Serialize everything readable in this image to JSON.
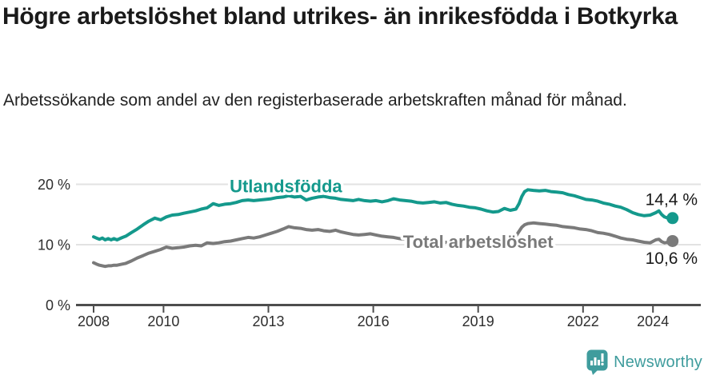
{
  "header": {
    "title": "Högre arbetslöshet bland utrikes- än inrikesfödda i Botkyrka",
    "subtitle": "Arbetssökande som andel av den registerbaserade arbetskraften månad för månad."
  },
  "footer": {
    "brand": "Newsworthy"
  },
  "colors": {
    "foreign_series": "#14998c",
    "total_series": "#7a7a7a",
    "axis": "#4d4d4d",
    "grid": "#e2e2e2",
    "text": "#1a1a1a",
    "logo_teal": "#3f9c9d",
    "background": "#ffffff"
  },
  "chart_data": {
    "type": "line",
    "title": "Högre arbetslöshet bland utrikes- än inrikesfödda i Botkyrka",
    "subtitle": "Arbetssökande som andel av den registerbaserade arbetskraften månad för månad.",
    "x_unit": "year (decimal; monthly observations 2008 – mid 2024)",
    "y_unit": "percent of register-based labour force",
    "ylim": [
      0,
      21
    ],
    "xlim": [
      2007.5,
      2025.4
    ],
    "grid": "horizontal-only",
    "legend_position": "inline-direct-labels",
    "yticks": [
      {
        "value": 0,
        "label": "0 %"
      },
      {
        "value": 10,
        "label": "10 %"
      },
      {
        "value": 20,
        "label": "20 %"
      }
    ],
    "xticks": [
      {
        "value": 2008,
        "label": "2008"
      },
      {
        "value": 2010,
        "label": "2010"
      },
      {
        "value": 2013,
        "label": "2013"
      },
      {
        "value": 2016,
        "label": "2016"
      },
      {
        "value": 2019,
        "label": "2019"
      },
      {
        "value": 2022,
        "label": "2022"
      },
      {
        "value": 2024,
        "label": "2024"
      }
    ],
    "series": [
      {
        "id": "utlandsfodda",
        "name": "Utlandsfödda",
        "color": "#14998c",
        "label_at": [
          2013.5,
          18.7
        ],
        "end_label": "14,4 %",
        "end_label_pos": "above",
        "last_value": 14.4,
        "points": [
          [
            2008.0,
            11.3
          ],
          [
            2008.08,
            11.1
          ],
          [
            2008.17,
            10.9
          ],
          [
            2008.25,
            11.1
          ],
          [
            2008.33,
            10.8
          ],
          [
            2008.42,
            11.0
          ],
          [
            2008.5,
            10.8
          ],
          [
            2008.58,
            11.0
          ],
          [
            2008.67,
            10.8
          ],
          [
            2008.75,
            11.0
          ],
          [
            2008.83,
            11.2
          ],
          [
            2008.92,
            11.4
          ],
          [
            2009.08,
            12.0
          ],
          [
            2009.25,
            12.6
          ],
          [
            2009.42,
            13.3
          ],
          [
            2009.58,
            13.9
          ],
          [
            2009.75,
            14.4
          ],
          [
            2009.92,
            14.1
          ],
          [
            2010.08,
            14.6
          ],
          [
            2010.25,
            14.9
          ],
          [
            2010.42,
            15.0
          ],
          [
            2010.58,
            15.2
          ],
          [
            2010.75,
            15.4
          ],
          [
            2010.92,
            15.6
          ],
          [
            2011.08,
            15.9
          ],
          [
            2011.25,
            16.1
          ],
          [
            2011.42,
            16.8
          ],
          [
            2011.58,
            16.5
          ],
          [
            2011.75,
            16.7
          ],
          [
            2011.92,
            16.8
          ],
          [
            2012.08,
            17.0
          ],
          [
            2012.25,
            17.3
          ],
          [
            2012.42,
            17.4
          ],
          [
            2012.58,
            17.3
          ],
          [
            2012.75,
            17.4
          ],
          [
            2012.92,
            17.5
          ],
          [
            2013.08,
            17.6
          ],
          [
            2013.25,
            17.8
          ],
          [
            2013.42,
            17.9
          ],
          [
            2013.58,
            18.1
          ],
          [
            2013.75,
            17.9
          ],
          [
            2013.92,
            18.0
          ],
          [
            2014.08,
            17.4
          ],
          [
            2014.25,
            17.7
          ],
          [
            2014.42,
            17.9
          ],
          [
            2014.58,
            18.0
          ],
          [
            2014.75,
            17.8
          ],
          [
            2014.92,
            17.7
          ],
          [
            2015.08,
            17.5
          ],
          [
            2015.25,
            17.4
          ],
          [
            2015.42,
            17.3
          ],
          [
            2015.58,
            17.5
          ],
          [
            2015.75,
            17.3
          ],
          [
            2015.92,
            17.2
          ],
          [
            2016.08,
            17.3
          ],
          [
            2016.25,
            17.1
          ],
          [
            2016.42,
            17.3
          ],
          [
            2016.58,
            17.6
          ],
          [
            2016.75,
            17.4
          ],
          [
            2016.92,
            17.3
          ],
          [
            2017.08,
            17.2
          ],
          [
            2017.25,
            17.0
          ],
          [
            2017.42,
            16.9
          ],
          [
            2017.58,
            17.0
          ],
          [
            2017.75,
            17.1
          ],
          [
            2017.92,
            16.9
          ],
          [
            2018.08,
            17.0
          ],
          [
            2018.25,
            16.7
          ],
          [
            2018.42,
            16.5
          ],
          [
            2018.58,
            16.4
          ],
          [
            2018.75,
            16.2
          ],
          [
            2018.92,
            16.1
          ],
          [
            2019.08,
            15.9
          ],
          [
            2019.25,
            15.6
          ],
          [
            2019.42,
            15.4
          ],
          [
            2019.58,
            15.5
          ],
          [
            2019.75,
            16.0
          ],
          [
            2019.92,
            15.7
          ],
          [
            2020.08,
            15.9
          ],
          [
            2020.17,
            16.8
          ],
          [
            2020.25,
            18.0
          ],
          [
            2020.33,
            18.8
          ],
          [
            2020.42,
            19.1
          ],
          [
            2020.58,
            19.0
          ],
          [
            2020.75,
            18.9
          ],
          [
            2020.92,
            19.0
          ],
          [
            2021.08,
            18.8
          ],
          [
            2021.25,
            18.7
          ],
          [
            2021.42,
            18.6
          ],
          [
            2021.58,
            18.3
          ],
          [
            2021.75,
            18.1
          ],
          [
            2021.92,
            17.8
          ],
          [
            2022.08,
            17.5
          ],
          [
            2022.25,
            17.4
          ],
          [
            2022.42,
            17.2
          ],
          [
            2022.58,
            16.9
          ],
          [
            2022.75,
            16.7
          ],
          [
            2022.92,
            16.4
          ],
          [
            2023.08,
            16.2
          ],
          [
            2023.25,
            15.8
          ],
          [
            2023.42,
            15.3
          ],
          [
            2023.58,
            15.0
          ],
          [
            2023.75,
            14.8
          ],
          [
            2023.92,
            14.9
          ],
          [
            2024.08,
            15.3
          ],
          [
            2024.17,
            15.6
          ],
          [
            2024.25,
            15.0
          ],
          [
            2024.33,
            14.6
          ],
          [
            2024.42,
            14.4
          ],
          [
            2024.56,
            14.4
          ]
        ]
      },
      {
        "id": "total",
        "name": "Total arbetslöshet",
        "color": "#7a7a7a",
        "label_at": [
          2019.0,
          9.5
        ],
        "end_label": "10,6 %",
        "end_label_pos": "below",
        "last_value": 10.6,
        "points": [
          [
            2008.0,
            7.0
          ],
          [
            2008.08,
            6.8
          ],
          [
            2008.17,
            6.6
          ],
          [
            2008.25,
            6.5
          ],
          [
            2008.33,
            6.4
          ],
          [
            2008.42,
            6.5
          ],
          [
            2008.5,
            6.5
          ],
          [
            2008.58,
            6.6
          ],
          [
            2008.67,
            6.6
          ],
          [
            2008.75,
            6.7
          ],
          [
            2008.83,
            6.8
          ],
          [
            2008.92,
            6.9
          ],
          [
            2009.08,
            7.3
          ],
          [
            2009.25,
            7.8
          ],
          [
            2009.42,
            8.2
          ],
          [
            2009.58,
            8.6
          ],
          [
            2009.75,
            8.9
          ],
          [
            2009.92,
            9.2
          ],
          [
            2010.08,
            9.6
          ],
          [
            2010.25,
            9.4
          ],
          [
            2010.42,
            9.5
          ],
          [
            2010.58,
            9.6
          ],
          [
            2010.75,
            9.8
          ],
          [
            2010.92,
            9.9
          ],
          [
            2011.08,
            9.8
          ],
          [
            2011.25,
            10.3
          ],
          [
            2011.42,
            10.2
          ],
          [
            2011.58,
            10.3
          ],
          [
            2011.75,
            10.5
          ],
          [
            2011.92,
            10.6
          ],
          [
            2012.08,
            10.8
          ],
          [
            2012.25,
            11.0
          ],
          [
            2012.42,
            11.2
          ],
          [
            2012.58,
            11.1
          ],
          [
            2012.75,
            11.3
          ],
          [
            2012.92,
            11.6
          ],
          [
            2013.08,
            11.9
          ],
          [
            2013.25,
            12.2
          ],
          [
            2013.42,
            12.6
          ],
          [
            2013.58,
            13.0
          ],
          [
            2013.75,
            12.8
          ],
          [
            2013.92,
            12.7
          ],
          [
            2014.08,
            12.5
          ],
          [
            2014.25,
            12.4
          ],
          [
            2014.42,
            12.5
          ],
          [
            2014.58,
            12.3
          ],
          [
            2014.75,
            12.2
          ],
          [
            2014.92,
            12.4
          ],
          [
            2015.08,
            12.1
          ],
          [
            2015.25,
            11.9
          ],
          [
            2015.42,
            11.7
          ],
          [
            2015.58,
            11.6
          ],
          [
            2015.75,
            11.7
          ],
          [
            2015.92,
            11.8
          ],
          [
            2016.08,
            11.6
          ],
          [
            2016.25,
            11.4
          ],
          [
            2016.42,
            11.3
          ],
          [
            2016.58,
            11.2
          ],
          [
            2016.75,
            11.0
          ],
          [
            2016.92,
            10.9
          ],
          [
            2017.08,
            10.8
          ],
          [
            2017.25,
            10.7
          ],
          [
            2017.42,
            10.6
          ],
          [
            2017.58,
            10.5
          ],
          [
            2017.75,
            10.5
          ],
          [
            2017.92,
            10.4
          ],
          [
            2018.08,
            10.4
          ],
          [
            2018.25,
            10.3
          ],
          [
            2018.42,
            10.4
          ],
          [
            2018.58,
            10.3
          ],
          [
            2018.75,
            10.4
          ],
          [
            2018.92,
            10.5
          ],
          [
            2019.08,
            10.4
          ],
          [
            2019.25,
            10.5
          ],
          [
            2019.42,
            10.6
          ],
          [
            2019.58,
            10.7
          ],
          [
            2019.75,
            10.9
          ],
          [
            2019.92,
            11.0
          ],
          [
            2020.08,
            11.4
          ],
          [
            2020.17,
            12.2
          ],
          [
            2020.25,
            12.9
          ],
          [
            2020.33,
            13.3
          ],
          [
            2020.42,
            13.5
          ],
          [
            2020.58,
            13.6
          ],
          [
            2020.75,
            13.5
          ],
          [
            2020.92,
            13.4
          ],
          [
            2021.08,
            13.3
          ],
          [
            2021.25,
            13.2
          ],
          [
            2021.42,
            13.0
          ],
          [
            2021.58,
            12.9
          ],
          [
            2021.75,
            12.8
          ],
          [
            2021.92,
            12.6
          ],
          [
            2022.08,
            12.5
          ],
          [
            2022.25,
            12.3
          ],
          [
            2022.42,
            12.0
          ],
          [
            2022.58,
            11.9
          ],
          [
            2022.75,
            11.7
          ],
          [
            2022.92,
            11.4
          ],
          [
            2023.08,
            11.1
          ],
          [
            2023.25,
            10.9
          ],
          [
            2023.42,
            10.8
          ],
          [
            2023.58,
            10.6
          ],
          [
            2023.75,
            10.4
          ],
          [
            2023.92,
            10.3
          ],
          [
            2024.08,
            10.8
          ],
          [
            2024.17,
            10.9
          ],
          [
            2024.25,
            10.5
          ],
          [
            2024.33,
            10.3
          ],
          [
            2024.42,
            10.4
          ],
          [
            2024.56,
            10.6
          ]
        ]
      }
    ]
  }
}
